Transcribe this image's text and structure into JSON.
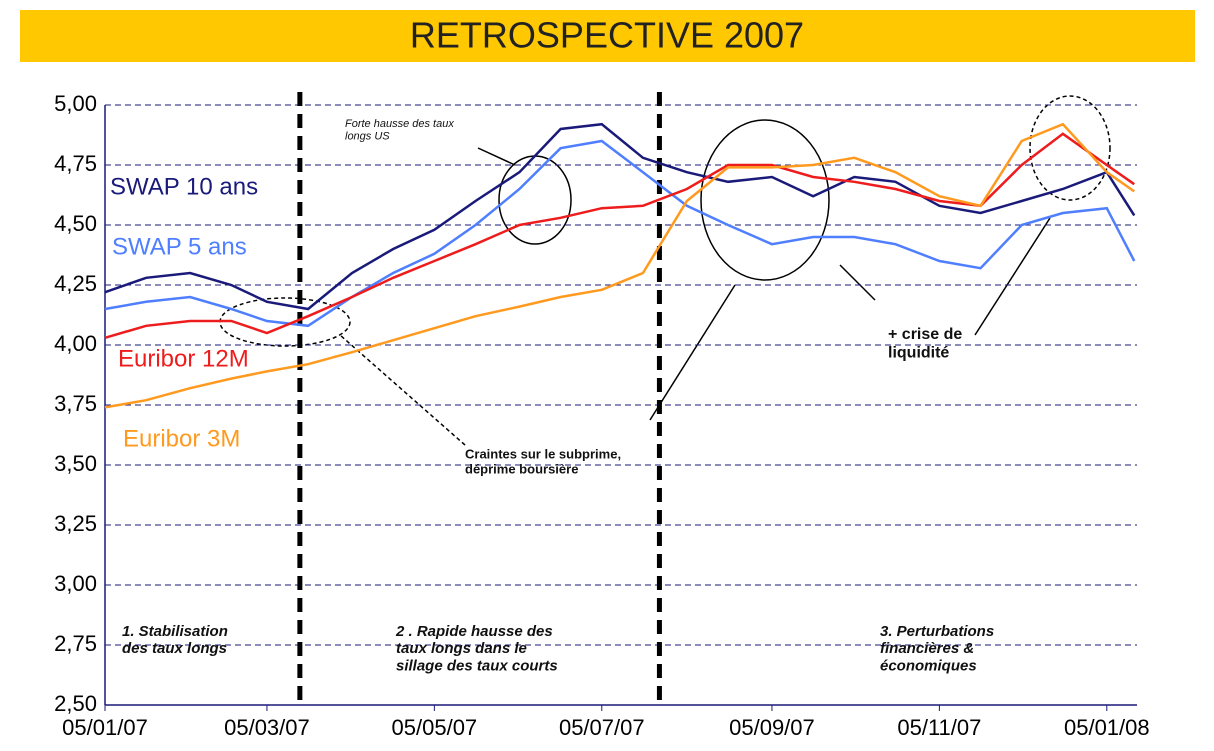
{
  "chart_data": {
    "type": "line",
    "title": "RETROSPECTIVE 2007",
    "x": [
      "2007-01-05",
      "2007-01-20",
      "2007-02-05",
      "2007-02-20",
      "2007-03-05",
      "2007-03-20",
      "2007-04-05",
      "2007-04-20",
      "2007-05-05",
      "2007-05-20",
      "2007-06-05",
      "2007-06-20",
      "2007-07-05",
      "2007-07-20",
      "2007-08-05",
      "2007-08-20",
      "2007-09-05",
      "2007-09-20",
      "2007-10-05",
      "2007-10-20",
      "2007-11-05",
      "2007-11-20",
      "2007-12-05",
      "2007-12-20",
      "2008-01-05",
      "2008-01-15"
    ],
    "series": [
      {
        "name": "SWAP 10 ans",
        "color": "#1a1a7a",
        "values": [
          4.22,
          4.28,
          4.3,
          4.25,
          4.18,
          4.15,
          4.3,
          4.4,
          4.48,
          4.6,
          4.72,
          4.9,
          4.92,
          4.78,
          4.72,
          4.68,
          4.7,
          4.62,
          4.7,
          4.68,
          4.58,
          4.55,
          4.6,
          4.65,
          4.72,
          4.54
        ]
      },
      {
        "name": "SWAP 5 ans",
        "color": "#4f7fff",
        "values": [
          4.15,
          4.18,
          4.2,
          4.15,
          4.1,
          4.08,
          4.2,
          4.3,
          4.38,
          4.5,
          4.65,
          4.82,
          4.85,
          4.72,
          4.58,
          4.5,
          4.42,
          4.45,
          4.45,
          4.42,
          4.35,
          4.32,
          4.5,
          4.55,
          4.57,
          4.35
        ]
      },
      {
        "name": "Euribor 12M",
        "color": "#ee1c1c",
        "values": [
          4.03,
          4.08,
          4.1,
          4.1,
          4.05,
          4.12,
          4.2,
          4.28,
          4.35,
          4.42,
          4.5,
          4.53,
          4.57,
          4.58,
          4.65,
          4.75,
          4.75,
          4.7,
          4.68,
          4.65,
          4.6,
          4.58,
          4.75,
          4.88,
          4.75,
          4.67
        ]
      },
      {
        "name": "Euribor 3M",
        "color": "#ff9a1f",
        "values": [
          3.74,
          3.77,
          3.82,
          3.86,
          3.89,
          3.92,
          3.97,
          4.02,
          4.07,
          4.12,
          4.16,
          4.2,
          4.23,
          4.3,
          4.6,
          4.74,
          4.74,
          4.75,
          4.78,
          4.72,
          4.62,
          4.58,
          4.85,
          4.92,
          4.72,
          4.64
        ]
      }
    ],
    "xlim": [
      "2007-01-05",
      "2008-01-16"
    ],
    "xticks": [
      {
        "value": "2007-01-05",
        "label": "05/01/07"
      },
      {
        "value": "2007-03-05",
        "label": "05/03/07"
      },
      {
        "value": "2007-05-05",
        "label": "05/05/07"
      },
      {
        "value": "2007-07-05",
        "label": "05/07/07"
      },
      {
        "value": "2007-09-05",
        "label": "05/09/07"
      },
      {
        "value": "2007-11-05",
        "label": "05/11/07"
      },
      {
        "value": "2008-01-05",
        "label": "05/01/08"
      }
    ],
    "ylim": [
      2.5,
      5
    ],
    "yticks": [
      {
        "value": 2.5,
        "label": "2,50"
      },
      {
        "value": 2.75,
        "label": "2,75"
      },
      {
        "value": 3,
        "label": "3,00"
      },
      {
        "value": 3.25,
        "label": "3,25"
      },
      {
        "value": 3.5,
        "label": "3,50"
      },
      {
        "value": 3.75,
        "label": "3,75"
      },
      {
        "value": 4,
        "label": "4,00"
      },
      {
        "value": 4.25,
        "label": "4,25"
      },
      {
        "value": 4.5,
        "label": "4,50"
      },
      {
        "value": 4.75,
        "label": "4,75"
      },
      {
        "value": 5,
        "label": "5,00"
      }
    ],
    "grid": true,
    "phase_dividers": [
      "2007-03-17",
      "2007-07-26"
    ],
    "annotations": [
      [
        "Forte hausse des taux",
        "longs US"
      ],
      [
        "Craintes sur le subprime,",
        "déprime boursière"
      ],
      [
        "+ crise de",
        "liquidité"
      ],
      [
        "1. Stabilisation",
        "des taux longs"
      ],
      [
        "2 . Rapide hausse des",
        "taux longs dans le",
        "sillage des taux courts"
      ],
      [
        "3. Perturbations",
        "financières &",
        "économiques"
      ]
    ]
  }
}
